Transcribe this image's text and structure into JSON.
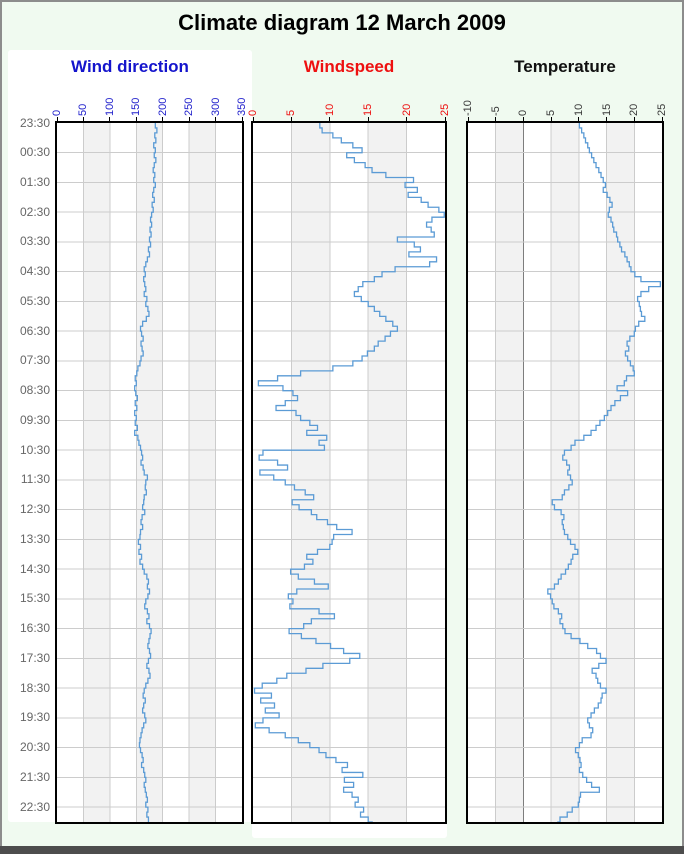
{
  "header": {
    "title": "Climate diagram 12 March 2009"
  },
  "colors": {
    "background": "#f0faf0",
    "plot_background": "#ffffff",
    "band": "#f2f2f2",
    "grid": "#cccccc",
    "zero_line": "#7d7d7d",
    "series_line": "#5b9bd5",
    "plot_border": "#000000",
    "frame_border": "#8c8c8c",
    "bottom_bar": "#4d4d4d",
    "time_label": "#666666"
  },
  "chart_data": {
    "type": "line",
    "title": "Climate diagram 12 March 2009",
    "orientation": "vertical-time",
    "line_style": "step",
    "grid": "on",
    "time_start": "23:30",
    "time_interval_minutes": 10,
    "time_span_hours": 23.5,
    "time_labels": [
      "23:30",
      "00:30",
      "01:30",
      "02:30",
      "03:30",
      "04:30",
      "05:30",
      "06:30",
      "07:30",
      "08:30",
      "09:30",
      "10:30",
      "11:30",
      "12:30",
      "13:30",
      "14:30",
      "15:30",
      "16:30",
      "17:30",
      "18:30",
      "19:30",
      "20:30",
      "21:30",
      "22:30"
    ],
    "panels": [
      {
        "id": "wind-direction",
        "name": "Wind direction",
        "title_color": "#1414cc",
        "tick_color": "#2222cc",
        "range": [
          0,
          350
        ],
        "ticks": [
          0,
          50,
          100,
          150,
          200,
          250,
          300,
          350
        ],
        "bands": [
          [
            50,
            100
          ],
          [
            150,
            200
          ],
          [
            250,
            300
          ]
        ],
        "zero_line": null,
        "values": [
          186,
          189,
          185,
          187,
          183,
          186,
          184,
          187,
          184,
          182,
          185,
          183,
          186,
          183,
          181,
          184,
          180,
          182,
          179,
          177,
          179,
          176,
          178,
          175,
          177,
          173,
          175,
          171,
          168,
          165,
          167,
          164,
          166,
          168,
          165,
          170,
          168,
          172,
          174,
          169,
          162,
          158,
          160,
          163,
          159,
          161,
          163,
          159,
          157,
          153,
          151,
          148,
          150,
          147,
          149,
          152,
          148,
          151,
          147,
          150,
          148,
          152,
          147,
          153,
          155,
          158,
          160,
          162,
          159,
          163,
          165,
          171,
          168,
          167,
          169,
          165,
          164,
          162,
          166,
          161,
          159,
          162,
          158,
          157,
          154,
          158,
          155,
          160,
          157,
          162,
          165,
          170,
          173,
          171,
          175,
          172,
          168,
          166,
          171,
          174,
          170,
          175,
          178,
          176,
          174,
          172,
          175,
          177,
          173,
          170,
          174,
          176,
          172,
          168,
          165,
          163,
          167,
          164,
          162,
          166,
          168,
          164,
          161,
          159,
          157,
          156,
          158,
          161,
          163,
          160,
          164,
          166,
          168,
          165,
          167,
          169,
          171,
          168,
          172,
          170,
          173,
          174
        ]
      },
      {
        "id": "windspeed",
        "name": "Windspeed",
        "title_color": "#ee1010",
        "tick_color": "#ee1010",
        "range": [
          0,
          25
        ],
        "ticks": [
          0,
          5,
          10,
          15,
          20,
          25
        ],
        "bands": [
          [
            5,
            10
          ],
          [
            15,
            20
          ]
        ],
        "zero_line": null,
        "values": [
          8.7,
          9.0,
          10.4,
          11.5,
          13.0,
          14.2,
          12.2,
          13.2,
          14.6,
          15.5,
          17.3,
          20.9,
          19.8,
          21.4,
          20.2,
          21.9,
          22.8,
          24.2,
          24.9,
          23.3,
          22.6,
          23.2,
          23.6,
          18.8,
          21.0,
          21.8,
          20.3,
          23.9,
          23.0,
          18.5,
          16.8,
          15.8,
          14.3,
          13.7,
          13.2,
          14.1,
          15.0,
          15.8,
          16.5,
          17.3,
          18.2,
          18.8,
          17.9,
          17.2,
          16.3,
          15.8,
          14.9,
          14.2,
          13.0,
          10.4,
          6.2,
          3.2,
          0.7,
          3.9,
          5.2,
          5.8,
          4.2,
          3.0,
          5.6,
          6.2,
          7.4,
          8.4,
          7.0,
          9.6,
          8.6,
          9.3,
          1.3,
          0.8,
          3.2,
          4.5,
          0.9,
          2.7,
          4.2,
          5.4,
          6.8,
          7.9,
          5.1,
          6.0,
          7.6,
          8.3,
          9.7,
          10.9,
          12.9,
          10.5,
          10.3,
          10.0,
          8.4,
          7.0,
          7.8,
          6.7,
          4.9,
          5.9,
          8.0,
          9.8,
          5.7,
          4.6,
          5.2,
          4.8,
          8.6,
          10.6,
          7.6,
          6.6,
          4.7,
          6.3,
          8.2,
          10.1,
          11.8,
          13.9,
          12.6,
          9.1,
          6.9,
          4.4,
          3.1,
          1.2,
          0.2,
          2.4,
          1.0,
          2.8,
          1.6,
          3.4,
          1.3,
          0.3,
          2.1,
          4.2,
          5.9,
          7.4,
          8.6,
          9.5,
          10.8,
          12.3,
          11.6,
          14.3,
          11.9,
          13.1,
          11.8,
          12.9,
          13.7,
          13.3,
          14.4,
          14.0,
          15.0,
          15.6
        ]
      },
      {
        "id": "temperature",
        "name": "Temperature",
        "title_color": "#111111",
        "tick_color": "#3a3a3a",
        "range": [
          -10,
          25
        ],
        "ticks": [
          -10,
          -5,
          0,
          5,
          10,
          15,
          20,
          25
        ],
        "bands": [
          [
            -5,
            0
          ],
          [
            5,
            10
          ],
          [
            15,
            20
          ]
        ],
        "zero_line": 0,
        "values": [
          10.1,
          10.5,
          10.9,
          11.2,
          11.6,
          11.9,
          12.3,
          12.7,
          13.1,
          13.6,
          14.0,
          14.4,
          14.8,
          14.4,
          15.1,
          15.6,
          16.0,
          15.5,
          15.3,
          15.8,
          16.1,
          16.3,
          16.8,
          17.0,
          17.4,
          17.7,
          18.3,
          18.7,
          19.1,
          19.4,
          20.1,
          21.2,
          24.7,
          22.6,
          21.2,
          20.6,
          20.9,
          21.1,
          21.3,
          21.9,
          20.8,
          20.2,
          20.0,
          19.2,
          18.7,
          19.0,
          18.4,
          18.8,
          19.3,
          19.8,
          20.0,
          18.6,
          18.2,
          16.9,
          18.8,
          17.5,
          16.5,
          15.8,
          15.2,
          14.6,
          13.8,
          13.1,
          12.2,
          10.9,
          9.3,
          8.6,
          7.4,
          7.1,
          7.8,
          8.3,
          8.0,
          8.5,
          8.8,
          8.2,
          7.4,
          7.0,
          5.2,
          5.6,
          6.8,
          7.3,
          7.0,
          7.2,
          7.4,
          8.0,
          8.5,
          9.3,
          9.8,
          8.9,
          8.6,
          8.1,
          7.6,
          6.8,
          6.3,
          5.6,
          4.4,
          4.9,
          5.2,
          5.5,
          6.3,
          6.9,
          6.6,
          7.1,
          7.5,
          8.6,
          10.2,
          11.6,
          13.2,
          13.9,
          14.9,
          13.6,
          12.4,
          13.1,
          13.4,
          13.9,
          14.9,
          14.2,
          14.0,
          13.5,
          12.8,
          12.2,
          11.6,
          11.9,
          12.5,
          12.2,
          10.6,
          10.1,
          9.4,
          9.9,
          10.2,
          10.4,
          10.1,
          10.7,
          11.4,
          12.3,
          13.7,
          10.3,
          10.1,
          9.9,
          8.8,
          7.9,
          6.6,
          6.1
        ]
      }
    ]
  }
}
